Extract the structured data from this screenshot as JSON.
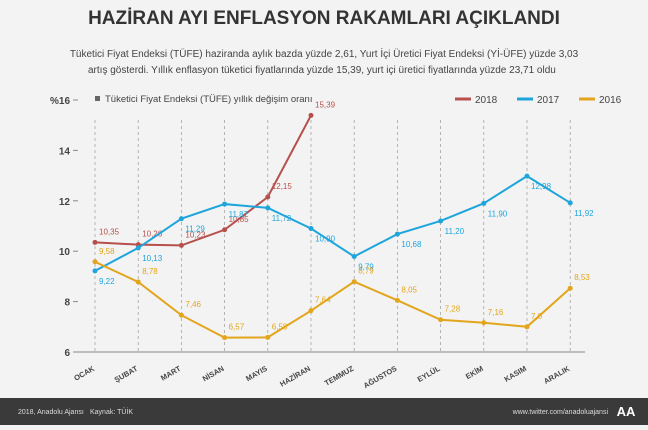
{
  "chart_data": {
    "type": "line",
    "title": "HAZİRAN AYI ENFLASYON RAKAMLARI AÇIKLANDI",
    "subtitle": [
      "Tüketici Fiyat Endeksi (TÜFE) haziranda aylık bazda yüzde 2,61, Yurt İçi Üretici Fiyat Endeksi (Yİ-ÜFE) yüzde 3,03",
      "artış gösterdi. Yıllık enflasyon tüketici fiyatlarında yüzde 15,39, yurt içi üretici fiyatlarında yüzde 23,71 oldu"
    ],
    "note": "Tüketici Fiyat Endeksi (TÜFE) yıllık değişim oranı",
    "categories": [
      "OCAK",
      "ŞUBAT",
      "MART",
      "NİSAN",
      "MAYIS",
      "HAZİRAN",
      "TEMMUZ",
      "AĞUSTOS",
      "EYLÜL",
      "EKİM",
      "KASIM",
      "ARALIK"
    ],
    "series": [
      {
        "name": "2018",
        "color": "#b5504c",
        "values": [
          10.35,
          10.26,
          10.23,
          10.85,
          12.15,
          15.39,
          null,
          null,
          null,
          null,
          null,
          null
        ],
        "value_labels": [
          "10,35",
          "10,26",
          "10,23",
          "10,85",
          "12,15",
          "15,39",
          null,
          null,
          null,
          null,
          null,
          null
        ]
      },
      {
        "name": "2017",
        "color": "#1ea5dc",
        "values": [
          9.22,
          10.13,
          11.29,
          11.87,
          11.72,
          10.9,
          9.79,
          10.68,
          11.2,
          11.9,
          12.98,
          11.92
        ],
        "value_labels": [
          "9,22",
          "10,13",
          "11,29",
          "11,87",
          "11,72",
          "10,90",
          "9,79",
          "10,68",
          "11,20",
          "11,90",
          "12,98",
          "11,92"
        ]
      },
      {
        "name": "2016",
        "color": "#e2a51c",
        "values": [
          9.58,
          8.78,
          7.46,
          6.57,
          6.58,
          7.64,
          8.79,
          8.05,
          7.28,
          7.16,
          7,
          8.53
        ],
        "value_labels": [
          "9,58",
          "8,78",
          "7,46",
          "6,57",
          "6,58",
          "7,64",
          "8,79",
          "8,05",
          "7,28",
          "7,16",
          "7,0",
          "8,53"
        ]
      }
    ],
    "ylim": [
      6,
      16
    ],
    "yticks": [
      6,
      8,
      10,
      12,
      14,
      {
        "value": 16,
        "label": "%16"
      }
    ],
    "footer": {
      "copyright": "2018, Anadolu Ajansı",
      "source": "Kaynak: TÜİK",
      "twitter": "www.twitter.com/anadoluajansi",
      "logo": "AA"
    }
  }
}
